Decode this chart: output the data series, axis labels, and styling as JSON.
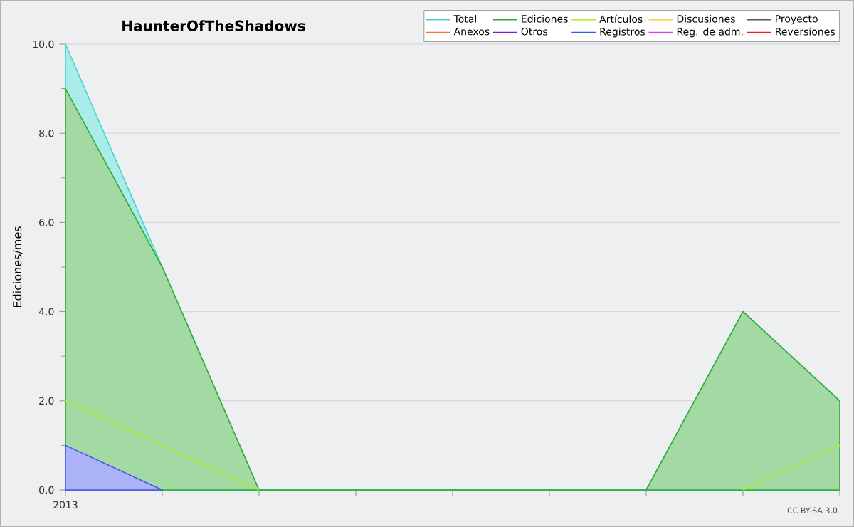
{
  "chart_data": {
    "type": "area",
    "title": "HaunterOfTheShadows",
    "ylabel": "Ediciones/mes",
    "categories": [
      "2013",
      null,
      null,
      null,
      null,
      null,
      null,
      null,
      null
    ],
    "series": [
      {
        "name": "Total",
        "color": "#40d4d0",
        "values": [
          10,
          5,
          0,
          0,
          0,
          0,
          0,
          4,
          2
        ]
      },
      {
        "name": "Ediciones",
        "color": "#33aa33",
        "values": [
          9,
          5,
          0,
          0,
          0,
          0,
          0,
          4,
          2
        ]
      },
      {
        "name": "Artículos",
        "type": "line",
        "color": "#aaee22",
        "values": [
          2,
          1,
          0,
          null,
          null,
          null,
          null,
          0,
          1
        ]
      },
      {
        "name": "Discusiones",
        "color": "#ffcc44",
        "values": [
          null,
          null,
          null,
          null,
          null,
          null,
          null,
          null,
          null
        ]
      },
      {
        "name": "Proyecto",
        "color": "#555555",
        "values": [
          null,
          null,
          null,
          null,
          null,
          null,
          null,
          null,
          null
        ]
      },
      {
        "name": "Anexos",
        "color": "#ee7733",
        "values": [
          null,
          null,
          null,
          null,
          null,
          null,
          null,
          null,
          null
        ]
      },
      {
        "name": "Otros",
        "color": "#7722cc",
        "values": [
          null,
          null,
          null,
          null,
          null,
          null,
          null,
          null,
          null
        ]
      },
      {
        "name": "Registros",
        "color": "#4455ee",
        "values": [
          1,
          0,
          null,
          null,
          null,
          null,
          null,
          null,
          null
        ]
      },
      {
        "name": "Reg. de adm.",
        "color": "#cc44dd",
        "values": [
          null,
          null,
          null,
          null,
          null,
          null,
          null,
          null,
          null
        ]
      },
      {
        "name": "Reversiones",
        "color": "#ee2222",
        "values": [
          null,
          null,
          null,
          null,
          null,
          null,
          null,
          null,
          null
        ]
      }
    ],
    "ylim": [
      0,
      10
    ],
    "yticks": [
      {
        "value": 0,
        "label": "0.0"
      },
      {
        "value": 2,
        "label": "2.0"
      },
      {
        "value": 4,
        "label": "4.0"
      },
      {
        "value": 6,
        "label": "6.0"
      },
      {
        "value": 8,
        "label": "8.0"
      },
      {
        "value": 10,
        "label": "10.0"
      }
    ],
    "grid": "y",
    "legend": "top right",
    "annotations": [
      "CC BY-SA 3.0"
    ]
  }
}
